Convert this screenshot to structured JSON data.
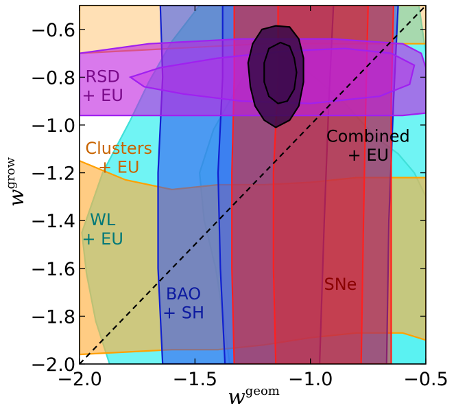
{
  "chart_data": {
    "type": "contour",
    "xlabel": "w",
    "xlabel_sup": "geom",
    "ylabel": "w",
    "ylabel_sup": "grow",
    "xlim": [
      -2.0,
      -0.5
    ],
    "ylim": [
      -2.0,
      -0.5
    ],
    "xticks": [
      {
        "value": -2.0,
        "label": "−2.0"
      },
      {
        "value": -1.5,
        "label": "−1.5"
      },
      {
        "value": -1.0,
        "label": "−1.0"
      },
      {
        "value": -0.5,
        "label": "−0.5"
      }
    ],
    "yticks": [
      {
        "value": -0.6,
        "label": "−0.6"
      },
      {
        "value": -0.8,
        "label": "−0.8"
      },
      {
        "value": -1.0,
        "label": "−1.0"
      },
      {
        "value": -1.2,
        "label": "−1.2"
      },
      {
        "value": -1.4,
        "label": "−1.4"
      },
      {
        "value": -1.6,
        "label": "−1.6"
      },
      {
        "value": -1.8,
        "label": "−1.8"
      },
      {
        "value": -2.0,
        "label": "−2.0"
      }
    ],
    "diagonal": {
      "from": [
        -2.0,
        -2.0
      ],
      "to": [
        -0.5,
        -0.5
      ],
      "style": "dashed"
    },
    "regions": [
      {
        "name": "WL + EU",
        "fill": "#40f0f0",
        "line": "#40e0d8",
        "opacity": 0.75,
        "outer": [
          [
            -1.87,
            -2.0
          ],
          [
            -1.93,
            -1.82
          ],
          [
            -1.97,
            -1.62
          ],
          [
            -1.99,
            -1.45
          ],
          [
            -1.9,
            -1.2
          ],
          [
            -1.78,
            -0.98
          ],
          [
            -1.7,
            -0.82
          ],
          [
            -1.6,
            -0.65
          ],
          [
            -1.48,
            -0.5
          ],
          [
            -0.53,
            -0.5
          ],
          [
            -0.5,
            -0.7
          ],
          [
            -0.5,
            -2.0
          ]
        ],
        "inner": [
          [
            -1.35,
            -2.0
          ],
          [
            -1.37,
            -1.85
          ],
          [
            -1.41,
            -1.6
          ],
          [
            -1.46,
            -1.4
          ],
          [
            -1.48,
            -1.2
          ],
          [
            -1.42,
            -1.02
          ],
          [
            -1.35,
            -0.9
          ],
          [
            -1.28,
            -0.78
          ],
          [
            -1.2,
            -0.7
          ],
          [
            -1.1,
            -0.72
          ],
          [
            -0.98,
            -0.8
          ],
          [
            -0.84,
            -0.92
          ],
          [
            -0.72,
            -1.05
          ],
          [
            -0.62,
            -1.12
          ],
          [
            -0.55,
            -1.2
          ],
          [
            -0.5,
            -1.3
          ],
          [
            -0.5,
            -2.0
          ]
        ]
      },
      {
        "name": "Clusters + EU",
        "fill": "#ffb040",
        "line": "#ffa000",
        "opacity": 0.65,
        "outer": [
          [
            -2.0,
            -1.15
          ],
          [
            -1.8,
            -1.23
          ],
          [
            -1.6,
            -1.27
          ],
          [
            -1.4,
            -1.25
          ],
          [
            -1.2,
            -1.25
          ],
          [
            -1.0,
            -1.24
          ],
          [
            -0.8,
            -1.22
          ],
          [
            -0.6,
            -1.22
          ],
          [
            -0.5,
            -1.22
          ],
          [
            -0.5,
            -1.9
          ],
          [
            -0.6,
            -1.87
          ],
          [
            -0.8,
            -1.87
          ],
          [
            -1.0,
            -1.89
          ],
          [
            -1.2,
            -1.92
          ],
          [
            -1.4,
            -1.94
          ],
          [
            -1.6,
            -1.94
          ],
          [
            -1.8,
            -1.95
          ],
          [
            -2.0,
            -1.96
          ]
        ],
        "inner": [
          [
            -2.0,
            -0.5
          ],
          [
            -2.0,
            -0.7
          ],
          [
            -1.6,
            -0.68
          ],
          [
            -1.2,
            -0.66
          ],
          [
            -0.8,
            -0.66
          ],
          [
            -0.5,
            -0.66
          ],
          [
            -0.5,
            -0.5
          ]
        ]
      },
      {
        "name": "BAO + SH",
        "fill": "#3050f0",
        "line": "#1020d0",
        "opacity": 0.55,
        "outer": [
          [
            -1.64,
            -2.0
          ],
          [
            -1.66,
            -1.6
          ],
          [
            -1.66,
            -1.2
          ],
          [
            -1.64,
            -0.8
          ],
          [
            -1.65,
            -0.5
          ],
          [
            -0.62,
            -0.5
          ],
          [
            -0.64,
            -0.9
          ],
          [
            -0.66,
            -1.4
          ],
          [
            -0.67,
            -2.0
          ]
        ],
        "inner": [
          [
            -1.37,
            -2.0
          ],
          [
            -1.39,
            -1.6
          ],
          [
            -1.4,
            -1.2
          ],
          [
            -1.38,
            -0.8
          ],
          [
            -1.38,
            -0.5
          ],
          [
            -0.9,
            -0.5
          ],
          [
            -0.92,
            -0.9
          ],
          [
            -0.94,
            -1.4
          ],
          [
            -0.96,
            -2.0
          ]
        ]
      },
      {
        "name": "SNe",
        "fill": "#e82020",
        "line": "#ff2020",
        "opacity": 0.55,
        "outer": [
          [
            -1.33,
            -2.0
          ],
          [
            -1.34,
            -1.6
          ],
          [
            -1.34,
            -1.2
          ],
          [
            -1.33,
            -0.8
          ],
          [
            -1.33,
            -0.5
          ],
          [
            -0.64,
            -0.5
          ],
          [
            -0.65,
            -0.9
          ],
          [
            -0.65,
            -1.4
          ],
          [
            -0.65,
            -2.0
          ]
        ],
        "inner": [
          [
            -1.15,
            -2.0
          ],
          [
            -1.16,
            -1.6
          ],
          [
            -1.16,
            -1.2
          ],
          [
            -1.14,
            -0.8
          ],
          [
            -1.14,
            -0.5
          ],
          [
            -0.75,
            -0.5
          ],
          [
            -0.76,
            -0.9
          ],
          [
            -0.77,
            -1.4
          ],
          [
            -0.78,
            -2.0
          ]
        ]
      },
      {
        "name": "RSD + EU",
        "fill": "#c020e0",
        "line": "#a020f0",
        "opacity": 0.6,
        "outer": [
          [
            -2.0,
            -0.7
          ],
          [
            -1.7,
            -0.66
          ],
          [
            -1.3,
            -0.64
          ],
          [
            -0.9,
            -0.64
          ],
          [
            -0.6,
            -0.66
          ],
          [
            -0.52,
            -0.7
          ],
          [
            -0.5,
            -0.76
          ],
          [
            -0.5,
            -0.95
          ],
          [
            -0.6,
            -0.96
          ],
          [
            -1.0,
            -0.96
          ],
          [
            -1.4,
            -0.96
          ],
          [
            -1.8,
            -0.96
          ],
          [
            -2.0,
            -0.96
          ]
        ],
        "inner": [
          [
            -1.78,
            -0.8
          ],
          [
            -1.65,
            -0.76
          ],
          [
            -1.4,
            -0.72
          ],
          [
            -1.1,
            -0.69
          ],
          [
            -0.85,
            -0.68
          ],
          [
            -0.65,
            -0.7
          ],
          [
            -0.55,
            -0.75
          ],
          [
            -0.57,
            -0.83
          ],
          [
            -0.7,
            -0.88
          ],
          [
            -1.0,
            -0.91
          ],
          [
            -1.3,
            -0.9
          ],
          [
            -1.55,
            -0.87
          ],
          [
            -1.72,
            -0.84
          ]
        ]
      },
      {
        "name": "Combined + EU",
        "fill": "#3a0a4a",
        "line": "#000000",
        "opacity": 0.85,
        "outer": [
          [
            -1.15,
            -0.585
          ],
          [
            -1.09,
            -0.59
          ],
          [
            -1.05,
            -0.64
          ],
          [
            -1.03,
            -0.72
          ],
          [
            -1.03,
            -0.82
          ],
          [
            -1.05,
            -0.92
          ],
          [
            -1.09,
            -0.98
          ],
          [
            -1.15,
            -1.01
          ],
          [
            -1.2,
            -0.98
          ],
          [
            -1.24,
            -0.92
          ],
          [
            -1.26,
            -0.84
          ],
          [
            -1.27,
            -0.74
          ],
          [
            -1.25,
            -0.66
          ],
          [
            -1.21,
            -0.6
          ]
        ],
        "inner": [
          [
            -1.13,
            -0.655
          ],
          [
            -1.09,
            -0.67
          ],
          [
            -1.07,
            -0.72
          ],
          [
            -1.06,
            -0.78
          ],
          [
            -1.07,
            -0.85
          ],
          [
            -1.1,
            -0.9
          ],
          [
            -1.14,
            -0.91
          ],
          [
            -1.18,
            -0.88
          ],
          [
            -1.2,
            -0.82
          ],
          [
            -1.2,
            -0.74
          ],
          [
            -1.18,
            -0.68
          ]
        ]
      }
    ],
    "annotations": [
      {
        "id": "rsd",
        "lines": [
          "RSD",
          "+ EU"
        ],
        "at": [
          -1.9,
          -0.82
        ],
        "color": "#7a0a8a"
      },
      {
        "id": "clusters",
        "lines": [
          "Clusters",
          "+ EU"
        ],
        "at": [
          -1.83,
          -1.12
        ],
        "color": "#c86400"
      },
      {
        "id": "wl",
        "lines": [
          "WL",
          "+ EU"
        ],
        "at": [
          -1.9,
          -1.42
        ],
        "color": "#007878"
      },
      {
        "id": "bao",
        "lines": [
          "BAO",
          "+ SH"
        ],
        "at": [
          -1.55,
          -1.73
        ],
        "color": "#0c1aa0"
      },
      {
        "id": "sne",
        "lines": [
          "SNe"
        ],
        "at": [
          -0.87,
          -1.69
        ],
        "color": "#8a0000"
      },
      {
        "id": "combined",
        "lines": [
          "Combined",
          "+ EU"
        ],
        "at": [
          -0.75,
          -1.07
        ],
        "color": "#000000"
      }
    ]
  }
}
